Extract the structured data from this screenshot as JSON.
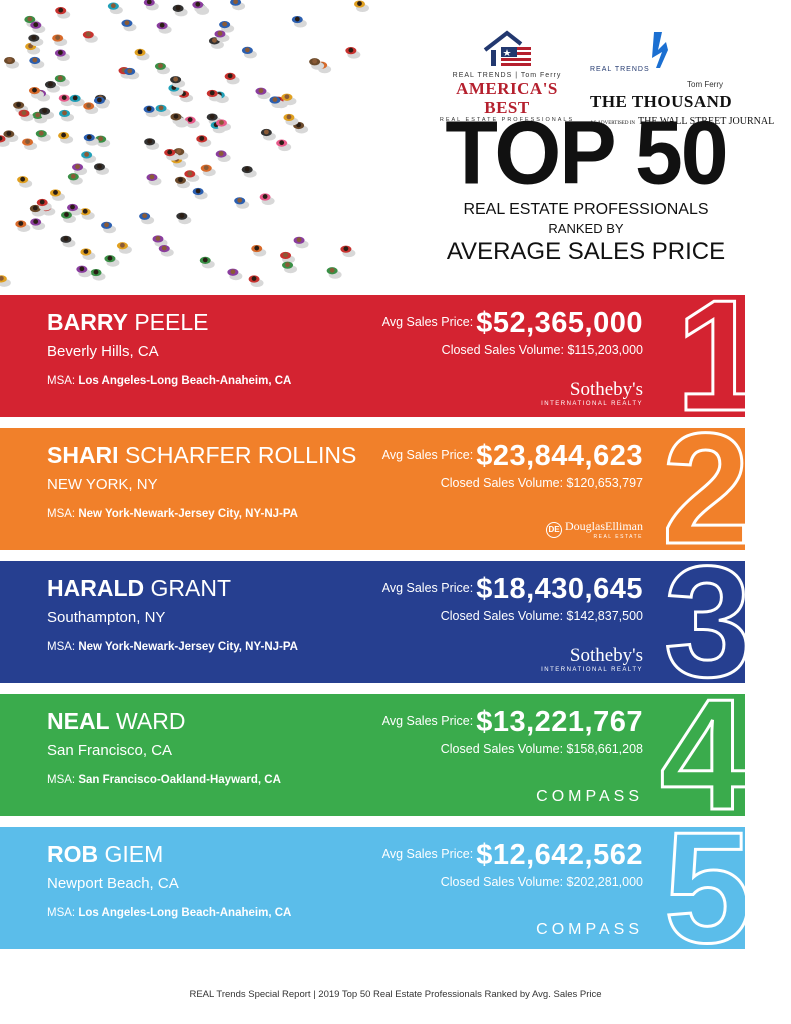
{
  "header": {
    "americas_best": {
      "realtrends": "REAL TRENDS",
      "tomferry": "Tom Ferry",
      "title": "AMERICA'S BEST",
      "subtitle": "REAL ESTATE PROFESSIONALS"
    },
    "the_thousand": {
      "realtrends": "REAL TRENDS",
      "tomferry": "Tom Ferry",
      "title": "THE THOUSAND",
      "as_advertised": "AS ADVERTISED IN",
      "wsj": "THE WALL STREET JOURNAL"
    },
    "title": "TOP 50",
    "subtitle_line1": "REAL ESTATE PROFESSIONALS",
    "subtitle_line2": "RANKED BY",
    "subtitle_line3": "AVERAGE SALES PRICE"
  },
  "labels": {
    "avg_price": "Avg Sales Price:",
    "closed_volume": "Closed Sales Volume:",
    "msa": "MSA:"
  },
  "rankings": [
    {
      "rank": "1",
      "first": "BARRY",
      "last": "PEELE",
      "location": "Beverly Hills, CA",
      "avg_price": "$52,365,000",
      "volume": "$115,203,000",
      "msa": "Los Angeles-Long Beach-Anaheim, CA",
      "brand": "Sotheby's",
      "brand_sub": "INTERNATIONAL REALTY",
      "color": "#d42331"
    },
    {
      "rank": "2",
      "first": "SHARI",
      "last": "SCHARFER ROLLINS",
      "location": "NEW YORK, NY",
      "avg_price": "$23,844,623",
      "volume": "$120,653,797",
      "msa": "New York-Newark-Jersey City, NY-NJ-PA",
      "brand": "DouglasElliman",
      "brand_sub": "REAL ESTATE",
      "color": "#f1802a"
    },
    {
      "rank": "3",
      "first": "HARALD",
      "last": "GRANT",
      "location": "Southampton, NY",
      "avg_price": "$18,430,645",
      "volume": "$142,837,500",
      "msa": "New York-Newark-Jersey City, NY-NJ-PA",
      "brand": "Sotheby's",
      "brand_sub": "INTERNATIONAL REALTY",
      "color": "#263f90"
    },
    {
      "rank": "4",
      "first": "NEAL",
      "last": "WARD",
      "location": "San Francisco, CA",
      "avg_price": "$13,221,767",
      "volume": "$158,661,208",
      "msa": "San Francisco-Oakland-Hayward, CA",
      "brand": "COMPASS",
      "brand_sub": "",
      "color": "#3aab4c"
    },
    {
      "rank": "5",
      "first": "ROB",
      "last": "GIEM",
      "location": "Newport Beach, CA",
      "avg_price": "$12,642,562",
      "volume": "$202,281,000",
      "msa": "Los Angeles-Long Beach-Anaheim, CA",
      "brand": "COMPASS",
      "brand_sub": "",
      "color": "#5bbdea"
    }
  ],
  "footer": "REAL Trends Special Report | 2019 Top 50 Real Estate Professionals Ranked by Avg. Sales Price"
}
